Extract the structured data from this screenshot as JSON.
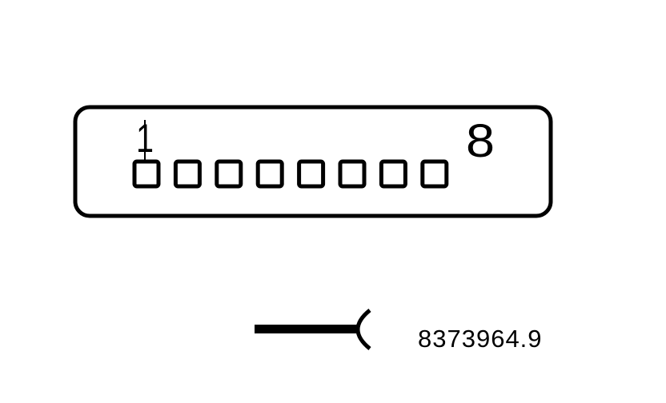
{
  "connector": {
    "pin_count": 8,
    "first_pin_label": "1",
    "last_pin_label": "8"
  },
  "reference_number": "8373964.9",
  "colors": {
    "line": "#000000",
    "background": "#ffffff"
  },
  "symbols": {
    "plug": "connector-plug-symbol"
  }
}
